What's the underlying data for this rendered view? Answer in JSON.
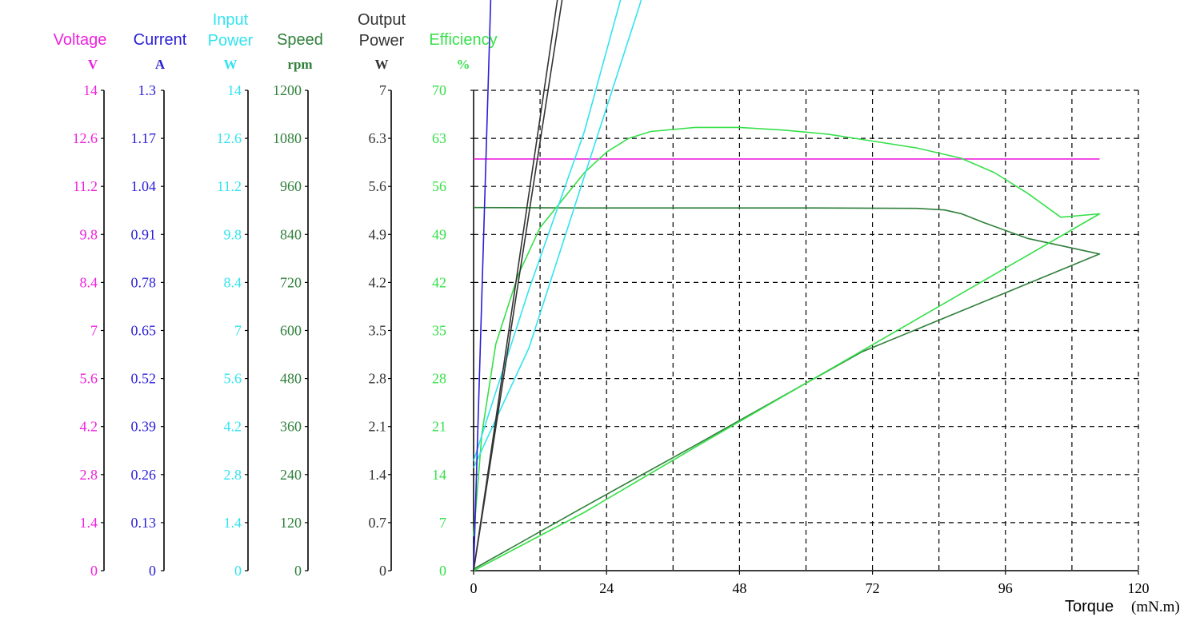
{
  "chart_data": {
    "type": "line",
    "x": {
      "label": "Torque",
      "unit": "(mN.m)",
      "range": [
        0,
        120
      ],
      "ticks": [
        "0",
        "24",
        "48",
        "72",
        "96",
        "120"
      ],
      "grid_divisions": 10
    },
    "grid": "dashed",
    "axes": [
      {
        "key": "voltage",
        "title_lines": [
          "Voltage"
        ],
        "unit": "V",
        "color": "#ee22dd",
        "range": [
          0,
          14
        ],
        "ticks": [
          "0",
          "1.4",
          "2.8",
          "4.2",
          "5.6",
          "7",
          "8.4",
          "9.8",
          "11.2",
          "12.6",
          "14"
        ]
      },
      {
        "key": "current",
        "title_lines": [
          "Current"
        ],
        "unit": "A",
        "color": "#2a1ed6",
        "range": [
          0,
          1.3
        ],
        "ticks": [
          "0",
          "0.13",
          "0.26",
          "0.39",
          "0.52",
          "0.65",
          "0.78",
          "0.91",
          "1.04",
          "1.17",
          "1.3"
        ]
      },
      {
        "key": "input_power",
        "title_lines": [
          "Input",
          "Power"
        ],
        "unit": "W",
        "color": "#33e3ef",
        "range": [
          0,
          14
        ],
        "ticks": [
          "0",
          "1.4",
          "2.8",
          "4.2",
          "5.6",
          "7",
          "8.4",
          "9.8",
          "11.2",
          "12.6",
          "14"
        ]
      },
      {
        "key": "speed",
        "title_lines": [
          "Speed"
        ],
        "unit": "rpm",
        "color": "#2f7f3a",
        "range": [
          0,
          1200
        ],
        "ticks": [
          "0",
          "120",
          "240",
          "360",
          "480",
          "600",
          "720",
          "840",
          "960",
          "1080",
          "1200"
        ]
      },
      {
        "key": "output_power",
        "title_lines": [
          "Output",
          "Power"
        ],
        "unit": "W",
        "color": "#333333",
        "range": [
          0,
          7
        ],
        "ticks": [
          "0",
          "0.7",
          "1.4",
          "2.1",
          "2.8",
          "3.5",
          "4.2",
          "4.9",
          "5.6",
          "6.3",
          "7"
        ]
      },
      {
        "key": "efficiency",
        "title_lines": [
          "Efficiency"
        ],
        "unit": "%",
        "color": "#36e04a",
        "range": [
          0,
          70
        ],
        "ticks": [
          "0",
          "7",
          "14",
          "21",
          "28",
          "35",
          "42",
          "49",
          "56",
          "63",
          "70"
        ]
      }
    ],
    "series": [
      {
        "axis": "voltage",
        "color": "#ee22dd",
        "points": [
          [
            0,
            12
          ],
          [
            113,
            12
          ]
        ]
      },
      {
        "axis": "speed",
        "color": "#2f7f3a",
        "points": [
          [
            0,
            907
          ],
          [
            20,
            906
          ],
          [
            40,
            906
          ],
          [
            60,
            906
          ],
          [
            80,
            905
          ],
          [
            85,
            901
          ],
          [
            88,
            892
          ],
          [
            92,
            870
          ],
          [
            100,
            830
          ],
          [
            113,
            791
          ],
          [
            70,
            546
          ],
          [
            40,
            313
          ],
          [
            20,
            160
          ],
          [
            0,
            4
          ]
        ]
      },
      {
        "axis": "efficiency",
        "color": "#36e04a",
        "points": [
          [
            0,
            5
          ],
          [
            1.5,
            20
          ],
          [
            4,
            33
          ],
          [
            8,
            43
          ],
          [
            12,
            50
          ],
          [
            16,
            54
          ],
          [
            20,
            58
          ],
          [
            24,
            61
          ],
          [
            28,
            63
          ],
          [
            32,
            64
          ],
          [
            40,
            64.6
          ],
          [
            48,
            64.6
          ],
          [
            56,
            64.2
          ],
          [
            64,
            63.6
          ],
          [
            72,
            62.6
          ],
          [
            80,
            61.6
          ],
          [
            88,
            60.1
          ],
          [
            94,
            58
          ],
          [
            100,
            55
          ],
          [
            106,
            51.5
          ],
          [
            113,
            52
          ],
          [
            70,
            32
          ],
          [
            40,
            18
          ],
          [
            20,
            8.5
          ],
          [
            0,
            0
          ]
        ]
      },
      {
        "axis": "input_power",
        "color": "#33e3ef",
        "points": [
          [
            0,
            3.2
          ],
          [
            10,
            8.2
          ],
          [
            20,
            12.8
          ],
          [
            113,
            67.5
          ],
          [
            60,
            34
          ],
          [
            30,
            16.5
          ],
          [
            10,
            6.5
          ],
          [
            0,
            3
          ]
        ]
      },
      {
        "axis": "current",
        "color": "#2a1ed6",
        "points": [
          [
            0,
            2.9
          ],
          [
            8,
            6.8
          ],
          [
            16,
            10.4
          ],
          [
            24,
            13.6
          ],
          [
            113,
            62
          ],
          [
            80,
            42.5
          ],
          [
            48,
            24.5
          ],
          [
            20,
            10
          ],
          [
            0,
            0
          ]
        ]
      },
      {
        "axis": "output_power",
        "color": "#333333",
        "points": [
          [
            0,
            0
          ],
          [
            20,
            11
          ],
          [
            40,
            22.5
          ],
          [
            60,
            34.5
          ],
          [
            72,
            42
          ],
          [
            84,
            51
          ],
          [
            92,
            56.5
          ],
          [
            100,
            58.5
          ],
          [
            107,
            60
          ],
          [
            113,
            61.2
          ],
          [
            80,
            43
          ],
          [
            48,
            25.5
          ],
          [
            24,
            12.5
          ],
          [
            0,
            0
          ]
        ]
      }
    ]
  }
}
